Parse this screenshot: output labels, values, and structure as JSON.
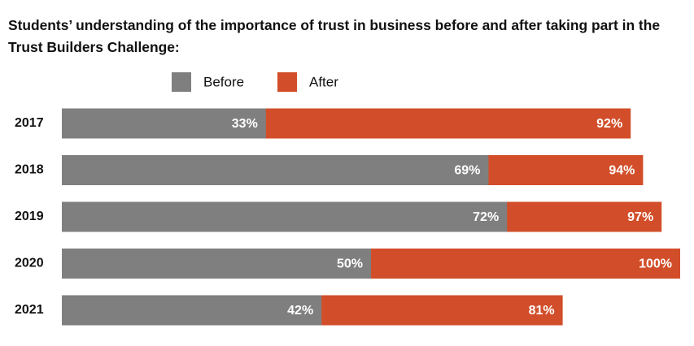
{
  "chart_data": {
    "type": "bar",
    "orientation": "horizontal",
    "overlap": true,
    "title": "Students’ understanding of the importance of trust in business before and after taking part in the Trust Builders Challenge:",
    "categories": [
      "2017",
      "2018",
      "2019",
      "2020",
      "2021"
    ],
    "series": [
      {
        "name": "Before",
        "color": "#7f7f7f",
        "values": [
          33,
          69,
          72,
          50,
          42
        ],
        "value_labels": [
          "33%",
          "69%",
          "72%",
          "50%",
          "42%"
        ]
      },
      {
        "name": "After",
        "color": "#d24e2a",
        "values": [
          92,
          94,
          97,
          100,
          81
        ],
        "value_labels": [
          "92%",
          "94%",
          "97%",
          "100%",
          "81%"
        ]
      }
    ],
    "xlim": [
      0,
      100
    ]
  }
}
